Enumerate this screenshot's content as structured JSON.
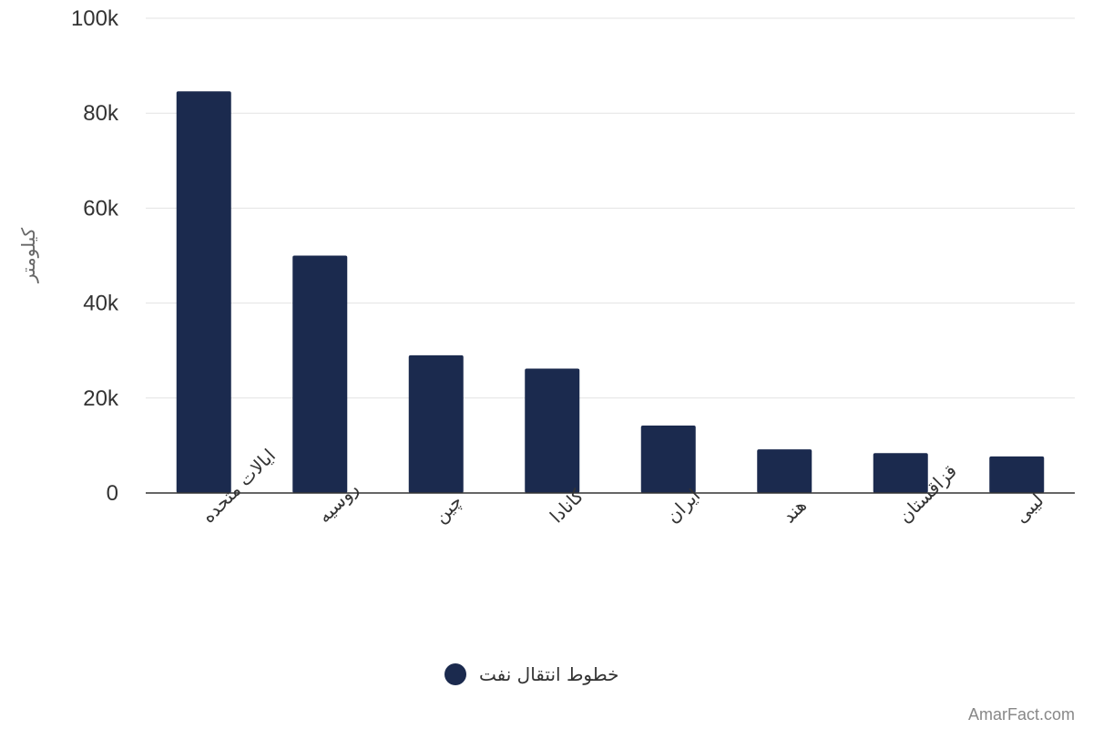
{
  "chart_data": {
    "type": "bar",
    "categories": [
      "ایالات متحده",
      "روسیه",
      "چین",
      "کانادا",
      "ایران",
      "هند",
      "قزاقستان",
      "لیبی"
    ],
    "series": [
      {
        "name": "خطوط انتقال نفت",
        "values": [
          84600,
          50000,
          29000,
          26200,
          14200,
          9200,
          8400,
          7700
        ],
        "color": "#1b2a4e"
      }
    ],
    "ylabel": "کیلومتر",
    "xlabel": "",
    "ylim": [
      0,
      100000
    ],
    "yticks": [
      {
        "value": 0,
        "label": "0"
      },
      {
        "value": 20000,
        "label": "20k"
      },
      {
        "value": 40000,
        "label": "40k"
      },
      {
        "value": 60000,
        "label": "60k"
      },
      {
        "value": 80000,
        "label": "80k"
      },
      {
        "value": 100000,
        "label": "100k"
      }
    ],
    "grid": true,
    "legend_position": "bottom-center"
  },
  "watermark": "AmarFact.com"
}
